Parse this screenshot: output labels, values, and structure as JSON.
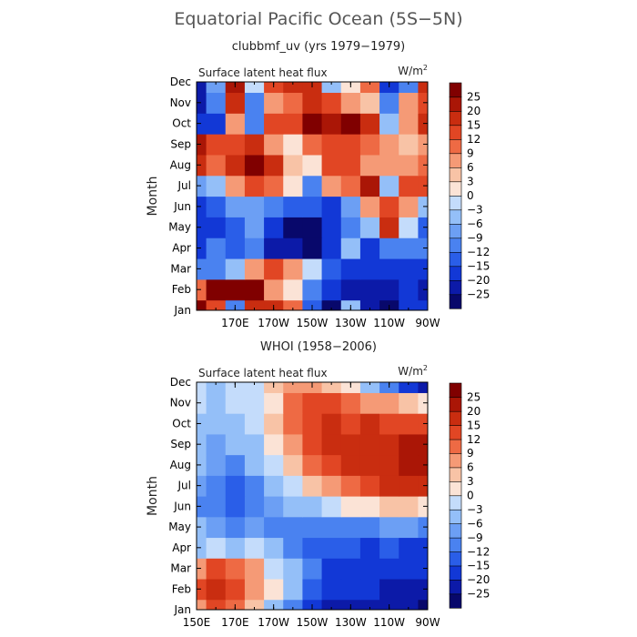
{
  "title": "Equatorial Pacific Ocean (5S−5N)",
  "chart_data": [
    {
      "type": "heatmap",
      "subtitle": "clubbmf_uv (yrs 1979−1979)",
      "panel_label": "Surface latent heat flux",
      "units": "W/m",
      "units_sup": "2",
      "ylabel": "Month",
      "xlabel": "",
      "x_ticks": [
        "170E",
        "170W",
        "150W",
        "130W",
        "110W",
        "90W"
      ],
      "y_ticks": [
        "Jan",
        "Feb",
        "Mar",
        "Apr",
        "May",
        "Jun",
        "Jul",
        "Aug",
        "Sep",
        "Oct",
        "Nov",
        "Dec"
      ],
      "xlim": [
        150,
        270
      ],
      "colorbar_levels": [
        "25",
        "20",
        "15",
        "12",
        "9",
        "6",
        "3",
        "0",
        "−3",
        "−6",
        "−9",
        "−12",
        "−15",
        "−20",
        "−25"
      ],
      "values": [
        [
          28,
          14,
          -10,
          18,
          16,
          10,
          -14,
          -28,
          -6,
          -22,
          -26,
          -20,
          -18
        ],
        [
          10,
          30,
          28,
          26,
          6,
          0,
          -12,
          -20,
          -22,
          -22,
          -24,
          -20,
          -22
        ],
        [
          -12,
          -10,
          -6,
          8,
          14,
          8,
          -2,
          -14,
          -18,
          -16,
          -20,
          -16,
          -18
        ],
        [
          -16,
          -12,
          -14,
          -10,
          -22,
          -24,
          -26,
          -18,
          -4,
          -16,
          -12,
          -12,
          -10
        ],
        [
          -18,
          -16,
          -14,
          -8,
          -20,
          -26,
          -26,
          -18,
          -12,
          -6,
          18,
          -2,
          -14
        ],
        [
          -20,
          -14,
          -8,
          -8,
          -12,
          -14,
          -14,
          -16,
          -8,
          6,
          12,
          6,
          -6
        ],
        [
          -8,
          -6,
          8,
          14,
          10,
          2,
          -10,
          8,
          10,
          20,
          -6,
          14,
          12
        ],
        [
          16,
          10,
          18,
          26,
          16,
          4,
          0,
          12,
          12,
          6,
          8,
          6,
          10
        ],
        [
          22,
          14,
          12,
          16,
          6,
          2,
          10,
          14,
          14,
          10,
          6,
          4,
          8
        ],
        [
          -16,
          -20,
          6,
          -10,
          14,
          12,
          26,
          24,
          28,
          18,
          -6,
          6,
          18
        ],
        [
          -22,
          -10,
          16,
          -12,
          8,
          10,
          16,
          14,
          8,
          4,
          -10,
          8,
          14
        ],
        [
          -24,
          -8,
          20,
          -2,
          14,
          18,
          16,
          -4,
          2,
          10,
          -20,
          -10,
          16
        ]
      ]
    },
    {
      "type": "heatmap",
      "subtitle": "WHOI (1958−2006)",
      "panel_label": "Surface latent heat flux",
      "units": "W/m",
      "units_sup": "2",
      "ylabel": "Month",
      "xlabel": "",
      "x_ticks": [
        "150E",
        "170E",
        "170W",
        "150W",
        "130W",
        "110W",
        "90W"
      ],
      "y_ticks": [
        "Jan",
        "Feb",
        "Mar",
        "Apr",
        "May",
        "Jun",
        "Jul",
        "Aug",
        "Sep",
        "Oct",
        "Nov",
        "Dec"
      ],
      "xlim": [
        150,
        270
      ],
      "colorbar_levels": [
        "25",
        "20",
        "15",
        "12",
        "9",
        "6",
        "3",
        "0",
        "−3",
        "−6",
        "−9",
        "−12",
        "−15",
        "−20",
        "−25"
      ],
      "values": [
        [
          6,
          14,
          10,
          4,
          -4,
          -10,
          -20,
          -22,
          -24,
          -22,
          -24,
          -24,
          -26
        ],
        [
          12,
          18,
          14,
          8,
          0,
          -6,
          -14,
          -18,
          -20,
          -20,
          -22,
          -22,
          -22
        ],
        [
          6,
          12,
          10,
          6,
          -2,
          -6,
          -12,
          -16,
          -18,
          -18,
          -18,
          -20,
          -20
        ],
        [
          -4,
          -2,
          -4,
          -2,
          -6,
          -10,
          -14,
          -14,
          -14,
          -16,
          -14,
          -16,
          -16
        ],
        [
          -6,
          -8,
          -10,
          -8,
          -10,
          -10,
          -10,
          -12,
          -10,
          -10,
          -8,
          -8,
          -10
        ],
        [
          -10,
          -12,
          -14,
          -12,
          -8,
          -6,
          -4,
          -2,
          0,
          2,
          4,
          4,
          2
        ],
        [
          -8,
          -10,
          -14,
          -10,
          -6,
          -2,
          4,
          8,
          10,
          12,
          16,
          18,
          16
        ],
        [
          -6,
          -8,
          -10,
          -6,
          -2,
          4,
          10,
          14,
          18,
          16,
          18,
          20,
          20
        ],
        [
          -6,
          -8,
          -6,
          -4,
          2,
          8,
          14,
          18,
          16,
          18,
          18,
          22,
          24
        ],
        [
          -4,
          -6,
          -4,
          -2,
          4,
          10,
          14,
          16,
          14,
          16,
          14,
          14,
          12
        ],
        [
          -2,
          -4,
          -2,
          -2,
          2,
          10,
          12,
          12,
          10,
          8,
          6,
          4,
          2
        ],
        [
          -2,
          -4,
          -2,
          -2,
          4,
          6,
          6,
          4,
          0,
          -6,
          -10,
          -16,
          -24
        ]
      ]
    }
  ]
}
